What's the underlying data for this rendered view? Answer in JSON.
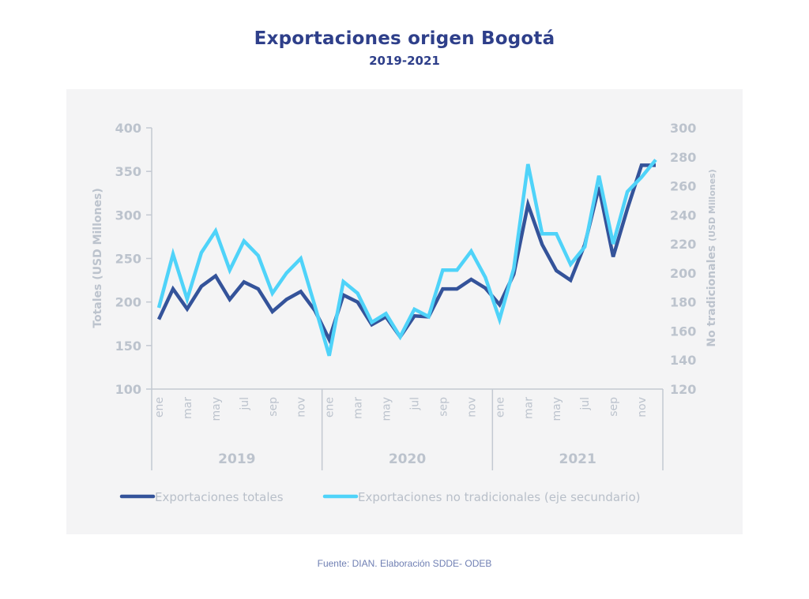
{
  "chart_data": {
    "type": "line",
    "title": "Exportaciones origen Bogotá",
    "subtitle": "2019-2021",
    "ylabel": "Totales (USD Millones)",
    "y2label_main": "No tradicionales",
    "y2label_unit": "(USD Millones)",
    "ylim": [
      100,
      400
    ],
    "y2lim": [
      120,
      300
    ],
    "yticks": [
      "100",
      "150",
      "200",
      "250",
      "300",
      "350",
      "400"
    ],
    "y2ticks": [
      "120",
      "140",
      "160",
      "180",
      "200",
      "220",
      "240",
      "260",
      "280",
      "300"
    ],
    "years": [
      "2019",
      "2020",
      "2021"
    ],
    "month_labels": [
      "ene",
      "mar",
      "may",
      "jul",
      "sep",
      "nov"
    ],
    "months_per_year": 12,
    "grid": false,
    "legend_position": "bottom",
    "series": [
      {
        "name": "Exportaciones totales",
        "axis": "primary",
        "color": "#34539a",
        "values": [
          180,
          215,
          192,
          218,
          230,
          203,
          223,
          215,
          189,
          203,
          212,
          190,
          157,
          208,
          200,
          174,
          183,
          160,
          184,
          183,
          215,
          215,
          226,
          216,
          197,
          232,
          312,
          266,
          236,
          225,
          266,
          332,
          252,
          307,
          357,
          357
        ]
      },
      {
        "name": "Exportaciones no tradicionales (eje secundario)",
        "axis": "secondary",
        "color": "#4fd3f9",
        "values": [
          176,
          213,
          182,
          214,
          229,
          202,
          222,
          212,
          186,
          200,
          210,
          177,
          143,
          194,
          186,
          166,
          172,
          156,
          175,
          170,
          202,
          202,
          215,
          197,
          168,
          203,
          275,
          227,
          227,
          206,
          218,
          267,
          220,
          256,
          266,
          278
        ]
      }
    ]
  },
  "source": "Fuente: DIAN. Elaboración SDDE- ODEB"
}
